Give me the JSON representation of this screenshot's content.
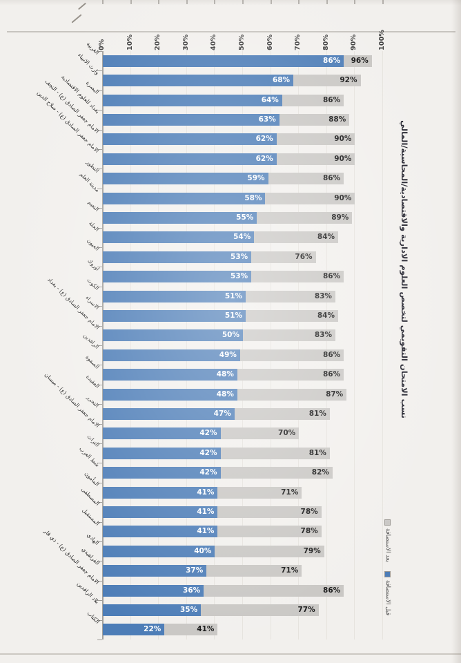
{
  "title": "نسب الامتحان التقويمي لتخصص العلوم الادارية والاقتصادية/المحاسبة/المالي",
  "legend": [
    {
      "label": "بعد الاستضافة",
      "color": "#c9c7c4"
    },
    {
      "label": "قبل الاستضافة",
      "color": "#4d7db7"
    }
  ],
  "axis": {
    "ticks": [
      "0%",
      "10%",
      "20%",
      "30%",
      "40%",
      "50%",
      "60%",
      "70%",
      "80%",
      "90%",
      "100%"
    ]
  },
  "colors": {
    "bar_before": "#4d7db7",
    "bar_after": "#c9c7c4",
    "value_label_before": "#ffffff",
    "value_label_after": "#161616",
    "paper": "#f2f0ed",
    "gridline": "#e6e3de"
  },
  "chart_data": {
    "type": "bar",
    "orientation": "horizontal",
    "title": "نسب الامتحان التقويمي لتخصص العلوم الادارية والاقتصادية/المحاسبة/المالي",
    "xlabel": "",
    "ylabel": "",
    "xlim": [
      0,
      100
    ],
    "grid": true,
    "legend_position": "right",
    "value_suffix": "%",
    "categories": [
      "الغربية",
      "وارث الانبياء",
      "البصرة",
      "بغداد للعلوم الاقتصادية",
      "الامام جعفر الصادق (ع) - النجف",
      "الامام جعفر الصادق (ع) - صلاح الدين",
      "التطور",
      "مدينة العلم",
      "النعيم",
      "الحلة",
      "العيون",
      "اوروك",
      "الكوت",
      "الاسراء",
      "الامام جعفر الصادق (ع) - بغداد",
      "الرافدين",
      "الصفوة",
      "العقيدة",
      "التحرر",
      "الامام جعفر الصادق (ع) - ميسان",
      "التراث",
      "شط العرب",
      "المأمون",
      "المصطفى",
      "المستقبل",
      "الهادي",
      "الفراهيدي",
      "الامام جعفر الصادق (ع) - ذي قار",
      "بلاد الرافدين",
      "الكتاب"
    ],
    "series": [
      {
        "name": "قبل الاستضافة",
        "color": "#4d7db7",
        "values": [
          86,
          68,
          64,
          63,
          62,
          62,
          59,
          58,
          55,
          54,
          53,
          53,
          51,
          51,
          50,
          49,
          48,
          48,
          47,
          42,
          42,
          42,
          41,
          41,
          41,
          40,
          37,
          36,
          35,
          22
        ]
      },
      {
        "name": "بعد الاستضافة",
        "color": "#c9c7c4",
        "values": [
          96,
          92,
          86,
          88,
          90,
          90,
          86,
          90,
          89,
          84,
          76,
          86,
          83,
          84,
          83,
          86,
          86,
          87,
          81,
          70,
          81,
          82,
          71,
          78,
          78,
          79,
          71,
          86,
          77,
          41
        ]
      }
    ]
  }
}
